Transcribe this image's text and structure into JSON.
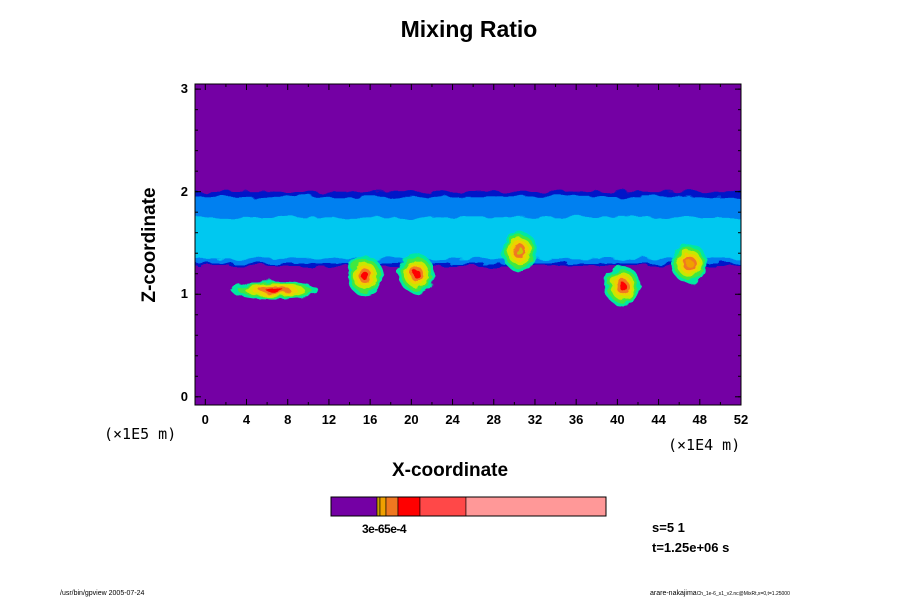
{
  "chart_data": {
    "type": "heatmap",
    "title": "Mixing Ratio",
    "xlabel": "X-coordinate",
    "ylabel": "Z-coordinate",
    "x_unit": "(×1E4 m)",
    "y_unit": "(×1E5 m)",
    "x_ticks": [
      "0",
      "4",
      "8",
      "12",
      "16",
      "20",
      "24",
      "28",
      "32",
      "36",
      "40",
      "44",
      "48",
      "52"
    ],
    "y_ticks": [
      "0",
      "1",
      "2",
      "3"
    ],
    "xlim": [
      -1,
      52
    ],
    "ylim": [
      -0.08,
      3.05
    ],
    "grid": false,
    "background_value_color": "#7400A4",
    "colorbar": {
      "colors": [
        "#7400A4",
        "#C8A000",
        "#F0A000",
        "#F07820",
        "#FF0000",
        "#FF4848",
        "#FF9898"
      ],
      "labels_text": "3e-65e-4"
    },
    "layers": [
      {
        "name": "cloud-layer-top",
        "color": "#0018C8",
        "x_range": [
          -1,
          52
        ],
        "z_range": [
          1.28,
          2.0
        ]
      },
      {
        "name": "cloud-layer-blue",
        "color": "#0080F0",
        "x_range": [
          -1,
          52
        ],
        "z_range": [
          1.3,
          1.95
        ]
      },
      {
        "name": "cloud-layer-cyan",
        "color": "#00C8F0",
        "x_range": [
          -1,
          52
        ],
        "z_range": [
          1.35,
          1.75
        ]
      }
    ],
    "features": [
      {
        "type": "band",
        "x_range": [
          2.5,
          11
        ],
        "z_center": 1.04,
        "peak_color": "#FF0000"
      },
      {
        "type": "plume",
        "x_center": 15.5,
        "z_center": 1.18,
        "peak_color": "#FF0000"
      },
      {
        "type": "plume",
        "x_center": 20.5,
        "z_center": 1.2,
        "peak_color": "#FF0000"
      },
      {
        "type": "plume",
        "x_center": 40.5,
        "z_center": 1.08,
        "peak_color": "#FF0000"
      },
      {
        "type": "plume",
        "x_center": 47,
        "z_center": 1.3,
        "peak_color": "#F0A000"
      },
      {
        "type": "plume",
        "x_center": 30.5,
        "z_center": 1.42,
        "peak_color": "#C8C800"
      }
    ]
  },
  "info": {
    "step": "s=5 1",
    "time": "t=1.25e+06 s"
  },
  "footer": {
    "left": "/usr/bin/gpview 2005-07-24",
    "right": "arare-nakajima",
    "right_small": "Ch_1e-6_s1_v2.nc@MixRt,x=0,t=1.25000"
  }
}
